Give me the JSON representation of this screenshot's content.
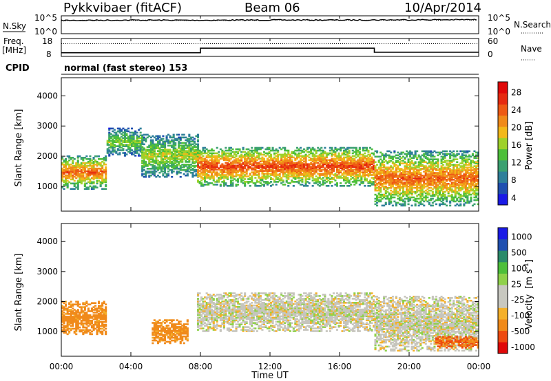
{
  "header": {
    "station": "Pykkvibaer (fitACF)",
    "beam": "Beam 06",
    "date": "10/Apr/2014"
  },
  "side_labels": {
    "nsky": "N.Sky",
    "nsearch": "N.Search",
    "freq": "Freq.",
    "freq_unit": "[MHz]",
    "nave": "Nave",
    "cpid": "CPID"
  },
  "cpid_text": "normal (fast stereo) 153",
  "colors": {
    "power_scale": [
      "#1a1ae6",
      "#1f4fb0",
      "#2e7f9a",
      "#3aa070",
      "#4dbf3a",
      "#9ed12a",
      "#f2b81a",
      "#f08a1a",
      "#ee5a14",
      "#e62a10",
      "#e00808"
    ],
    "velocity_scale": [
      "#e00808",
      "#ee4a10",
      "#f08a1a",
      "#f4b02a",
      "#c8c8c0",
      "#c8c8c0",
      "#8fd14a",
      "#4dbf3a",
      "#2a8a6a",
      "#1f4fb0",
      "#1a1ae6"
    ],
    "gray": "#c6c5bd"
  },
  "chart_data": [
    {
      "type": "line",
      "title": "N.Sky / N.Search",
      "series": [
        {
          "name": "N.Sky",
          "x": [
            "00:00",
            "04:00",
            "08:00",
            "12:00",
            "16:00",
            "20:00",
            "00:00"
          ],
          "values": [
            10000,
            12000,
            11000,
            13000,
            12500,
            15000,
            16000
          ]
        },
        {
          "name": "N.Search",
          "x": [
            "00:00",
            "04:00",
            "08:00",
            "12:00",
            "16:00",
            "20:00",
            "00:00"
          ],
          "values": [
            9000,
            10000,
            10000,
            11000,
            11000,
            12000,
            13000
          ]
        }
      ],
      "y_ticks": [
        "10^5",
        "10^0"
      ],
      "y_ticks_right": [
        "10^5",
        "10^0"
      ],
      "ylabel": "N.Sky",
      "ylabel_right": "N.Search"
    },
    {
      "type": "line",
      "title": "Freq. / Nave",
      "series": [
        {
          "name": "Freq.",
          "x": [
            "00:00",
            "08:00",
            "08:00",
            "18:00",
            "18:00",
            "24:00"
          ],
          "values": [
            9.5,
            9.5,
            12.5,
            12.5,
            9.8,
            9.8
          ]
        },
        {
          "name": "Nave",
          "x": [
            "00:00",
            "24:00"
          ],
          "values": [
            45,
            45
          ]
        }
      ],
      "y_ticks": [
        "18",
        "8"
      ],
      "y_ticks_right": [
        "60",
        "0"
      ],
      "ylabel": "Freq. [MHz]",
      "ylabel_right": "Nave"
    },
    {
      "type": "heatmap",
      "title": "Power",
      "xlabel": "Time UT",
      "ylabel": "Slant Range [km]",
      "x_ticks": [
        "00:00",
        "04:00",
        "08:00",
        "12:00",
        "16:00",
        "20:00",
        "00:00"
      ],
      "y_ticks": [
        "1000",
        "2000",
        "3000",
        "4000"
      ],
      "xlim": [
        0,
        24
      ],
      "ylim": [
        180,
        4600
      ],
      "colorbar_label": "Power [dB]",
      "colorbar_ticks": [
        "4",
        "8",
        "12",
        "16",
        "20",
        "24",
        "28"
      ],
      "features": [
        {
          "start_h": 0.0,
          "end_h": 2.6,
          "center_km": 1450,
          "width_km": 550,
          "level_db": 24
        },
        {
          "start_h": 2.6,
          "end_h": 4.6,
          "center_km": 2450,
          "width_km": 450,
          "level_db": 14
        },
        {
          "start_h": 4.6,
          "end_h": 7.8,
          "center_km": 2000,
          "width_km": 700,
          "level_db": 16
        },
        {
          "start_h": 7.8,
          "end_h": 18.0,
          "center_km": 1650,
          "width_km": 650,
          "level_db": 26
        },
        {
          "start_h": 18.0,
          "end_h": 24.0,
          "center_km": 1250,
          "width_km": 900,
          "level_db": 24
        }
      ]
    },
    {
      "type": "heatmap",
      "title": "Velocity",
      "xlabel": "Time UT",
      "ylabel": "Slant Range [km]",
      "x_ticks": [
        "00:00",
        "04:00",
        "08:00",
        "12:00",
        "16:00",
        "20:00",
        "00:00"
      ],
      "y_ticks": [
        "1000",
        "2000",
        "3000",
        "4000"
      ],
      "xlim": [
        0,
        24
      ],
      "ylim": [
        180,
        4600
      ],
      "colorbar_label": "Velocity [m s^-1]",
      "colorbar_ticks": [
        "1000",
        "500",
        "100",
        "25",
        "-25",
        "-100",
        "-500",
        "-1000"
      ],
      "features": [
        {
          "start_h": 0.0,
          "end_h": 2.6,
          "center_km": 1450,
          "width_km": 550,
          "velocity": -200
        },
        {
          "start_h": 5.2,
          "end_h": 7.2,
          "center_km": 1000,
          "width_km": 400,
          "velocity": -200
        },
        {
          "start_h": 7.8,
          "end_h": 18.0,
          "center_km": 1650,
          "width_km": 650,
          "velocity": 0
        },
        {
          "start_h": 18.0,
          "end_h": 24.0,
          "center_km": 1250,
          "width_km": 900,
          "velocity": 0
        },
        {
          "start_h": 21.5,
          "end_h": 24.0,
          "center_km": 650,
          "width_km": 200,
          "velocity": -300
        }
      ]
    }
  ],
  "axis": {
    "time_label": "Time UT",
    "slant_label": "Slant Range [km]",
    "power_label": "Power [dB]",
    "velocity_label": "Velocity",
    "velocity_unit": "[m s",
    "velocity_unit_sup": "-1",
    "velocity_unit_end": "]"
  }
}
